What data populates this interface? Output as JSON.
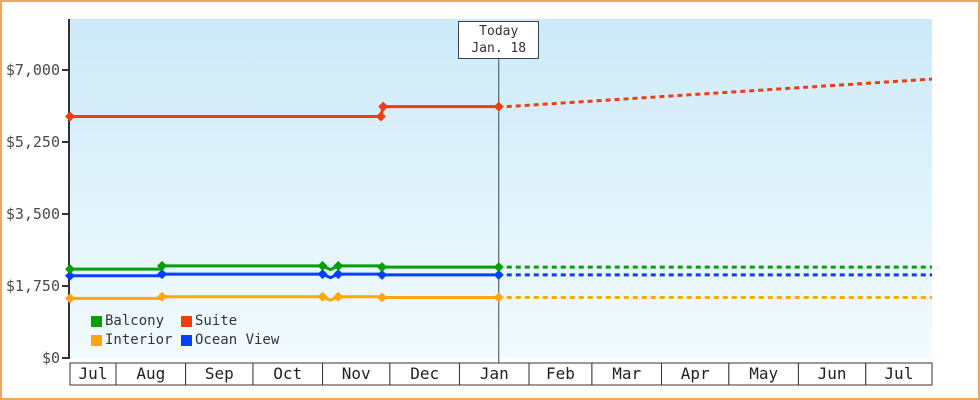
{
  "window": {
    "background": "#ffffff",
    "border_color": "#f2a55c"
  },
  "annotation": {
    "line1": "Today",
    "line2": "Jan. 18"
  },
  "legend": {
    "items": [
      {
        "id": "balcony",
        "label": "Balcony",
        "color": "#05a005"
      },
      {
        "id": "suite",
        "label": "Suite",
        "color": "#f23b0f"
      },
      {
        "id": "interior",
        "label": "Interior",
        "color": "#ffa60a"
      },
      {
        "id": "ocean-view",
        "label": "Ocean View",
        "color": "#0540fa"
      }
    ]
  },
  "chart_data": {
    "type": "line",
    "title": "",
    "x_axis": {
      "unit": "days-from-Jul-1",
      "day_range": [
        10.5,
        394.5
      ],
      "month_boundaries_days": [
        10.5,
        31,
        62,
        92,
        123,
        153,
        184,
        215,
        243,
        274,
        304,
        335,
        365,
        394.5
      ],
      "tick_labels": [
        "Jul",
        "Aug",
        "Sep",
        "Oct",
        "Nov",
        "Dec",
        "Jan",
        "Feb",
        "Mar",
        "Apr",
        "May",
        "Jun",
        "Jul"
      ]
    },
    "y_axis": {
      "tick_values": [
        0,
        1750,
        3500,
        5250,
        7000
      ],
      "tick_labels": [
        "$0",
        "$1,750",
        "$3,500",
        "$5,250",
        "$7,000"
      ],
      "ylim": [
        0,
        8240
      ],
      "grid": false
    },
    "today": {
      "day": 201.5,
      "label": "Today",
      "date": "Jan. 18"
    },
    "plot": {
      "gradient_top": "#cdeaf8",
      "gradient_bottom": "#f2fbfe"
    },
    "legend_position": "bottom-left-inside",
    "series": [
      {
        "name": "Interior",
        "color": "#ffa60a",
        "solid": [
          [
            10.5,
            1450
          ],
          [
            51.5,
            1450
          ],
          [
            51.5,
            1490
          ],
          [
            123,
            1490
          ],
          [
            126.5,
            1405
          ],
          [
            130,
            1490
          ],
          [
            149.5,
            1490
          ],
          [
            149.5,
            1470
          ],
          [
            201.5,
            1470
          ]
        ],
        "markers": [
          [
            10.5,
            1450
          ],
          [
            51.5,
            1490
          ],
          [
            123,
            1490
          ],
          [
            130,
            1490
          ],
          [
            149.5,
            1470
          ],
          [
            201.5,
            1470
          ]
        ],
        "projection": [
          [
            201.5,
            1470
          ],
          [
            394.5,
            1470
          ]
        ]
      },
      {
        "name": "Ocean View",
        "color": "#0540fa",
        "solid": [
          [
            10.5,
            2000
          ],
          [
            51.5,
            2000
          ],
          [
            51.5,
            2040
          ],
          [
            123,
            2040
          ],
          [
            126.5,
            1955
          ],
          [
            130,
            2040
          ],
          [
            149.5,
            2040
          ],
          [
            149.5,
            2020
          ],
          [
            201.5,
            2020
          ]
        ],
        "markers": [
          [
            10.5,
            2000
          ],
          [
            51.5,
            2040
          ],
          [
            123,
            2040
          ],
          [
            130,
            2040
          ],
          [
            149.5,
            2020
          ],
          [
            201.5,
            2020
          ]
        ],
        "projection": [
          [
            201.5,
            2020
          ],
          [
            394.5,
            2020
          ]
        ]
      },
      {
        "name": "Balcony",
        "color": "#05a005",
        "solid": [
          [
            10.5,
            2160
          ],
          [
            51.5,
            2160
          ],
          [
            51.5,
            2240
          ],
          [
            123,
            2240
          ],
          [
            126.5,
            2150
          ],
          [
            130,
            2240
          ],
          [
            149.5,
            2240
          ],
          [
            149.5,
            2210
          ],
          [
            201.5,
            2210
          ]
        ],
        "markers": [
          [
            10.5,
            2160
          ],
          [
            51.5,
            2240
          ],
          [
            123,
            2240
          ],
          [
            130,
            2240
          ],
          [
            149.5,
            2210
          ],
          [
            201.5,
            2210
          ]
        ],
        "projection": [
          [
            201.5,
            2210
          ],
          [
            394.5,
            2210
          ]
        ]
      },
      {
        "name": "Suite",
        "color": "#f23b0f",
        "solid": [
          [
            10.5,
            5870
          ],
          [
            149,
            5870
          ],
          [
            150,
            6110
          ],
          [
            201.5,
            6110
          ]
        ],
        "markers": [
          [
            10.5,
            5870
          ],
          [
            149,
            5870
          ],
          [
            150,
            6110
          ],
          [
            201.5,
            6110
          ]
        ],
        "projection": [
          [
            201.5,
            6110
          ],
          [
            394.5,
            6780
          ]
        ]
      }
    ]
  }
}
